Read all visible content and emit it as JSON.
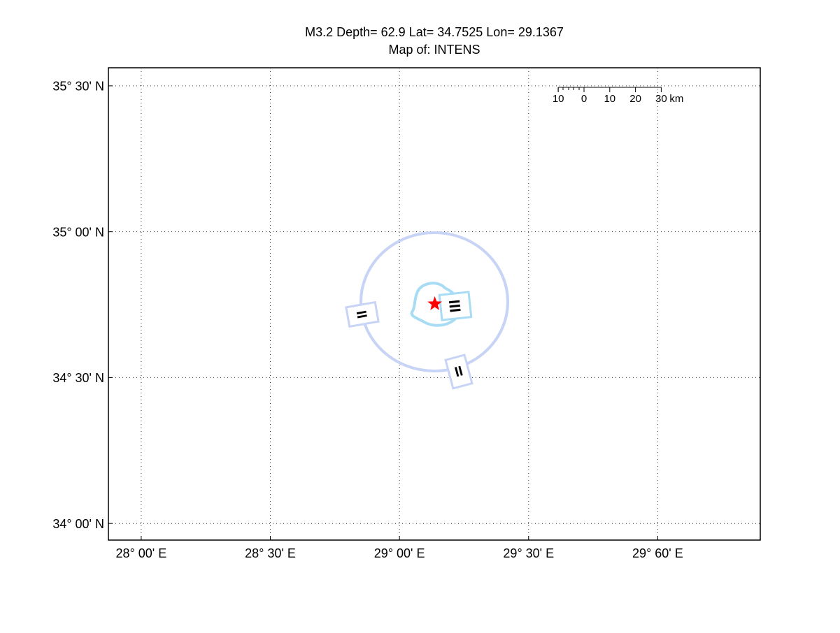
{
  "chart_data": {
    "type": "map",
    "title": [
      "M3.2 Depth= 62.9 Lat= 34.7525 Lon= 29.1367",
      "Map of: INTENS"
    ],
    "xlim": [
      27.873,
      30.397
    ],
    "ylim": [
      33.943,
      35.562
    ],
    "xticks": [
      {
        "value": 28,
        "label": "28° 00' E"
      },
      {
        "value": 28.5,
        "label": "28° 30' E"
      },
      {
        "value": 29,
        "label": "29° 00' E"
      },
      {
        "value": 29.5,
        "label": "29° 30' E"
      },
      {
        "value": 30,
        "label": "29° 60' E"
      }
    ],
    "yticks": [
      {
        "value": 35.5,
        "label": "35° 30' N"
      },
      {
        "value": 35,
        "label": "35° 00' N"
      },
      {
        "value": 34.5,
        "label": "34° 30' N"
      },
      {
        "value": 34,
        "label": "34° 00' N"
      }
    ],
    "grid": true,
    "epicenter": {
      "x": 29.1367,
      "y": 34.7525,
      "color": "#ff0000"
    },
    "contours": [
      {
        "label": "II",
        "color": "#c8d4f5"
      },
      {
        "label": "III",
        "color": "#a8dcf5"
      }
    ],
    "scalebar": {
      "ticks": [
        {
          "value": -10,
          "label": "10"
        },
        0,
        10,
        20,
        30
      ],
      "unit": "km"
    }
  }
}
